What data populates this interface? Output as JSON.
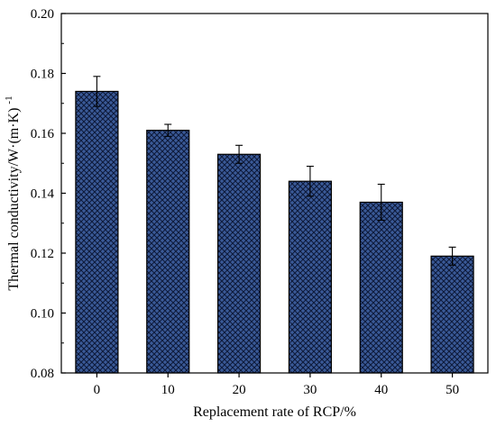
{
  "chart_data": {
    "type": "bar",
    "categories": [
      "0",
      "10",
      "20",
      "30",
      "40",
      "50"
    ],
    "values": [
      0.174,
      0.161,
      0.153,
      0.144,
      0.137,
      0.119
    ],
    "errors": [
      0.005,
      0.002,
      0.003,
      0.005,
      0.006,
      0.003
    ],
    "title": "",
    "xlabel": "Replacement rate of RCP/%",
    "ylabel": "Thermal conductivity/W·(m·K)",
    "ylabel_superscript": "-1",
    "ylim": [
      0.08,
      0.2
    ],
    "yticks": [
      "0.08",
      "0.10",
      "0.12",
      "0.14",
      "0.16",
      "0.18",
      "0.20"
    ],
    "grid": false,
    "legend": "none",
    "bar_fill": "#3a5a98",
    "bar_hatch": "crosshatch",
    "bar_stroke": "#000000"
  }
}
